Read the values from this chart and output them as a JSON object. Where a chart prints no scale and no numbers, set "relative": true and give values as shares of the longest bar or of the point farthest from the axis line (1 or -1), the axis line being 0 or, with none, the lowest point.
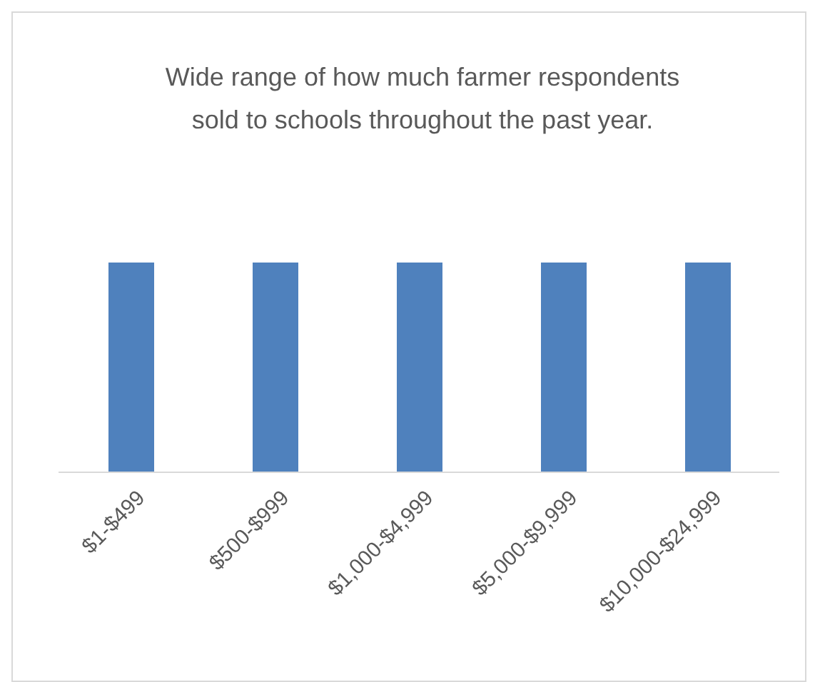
{
  "chart_data": {
    "type": "bar",
    "title": "Wide range of how much farmer respondents sold to schools throughout the past year.",
    "categories": [
      "$1-$499",
      "$500-$999",
      "$1,000-$4,999",
      "$5,000-$9,999",
      "$10,000-$24,999"
    ],
    "values": [
      1,
      1,
      1,
      1,
      1
    ],
    "color": "#4f81bd",
    "relative": true
  }
}
